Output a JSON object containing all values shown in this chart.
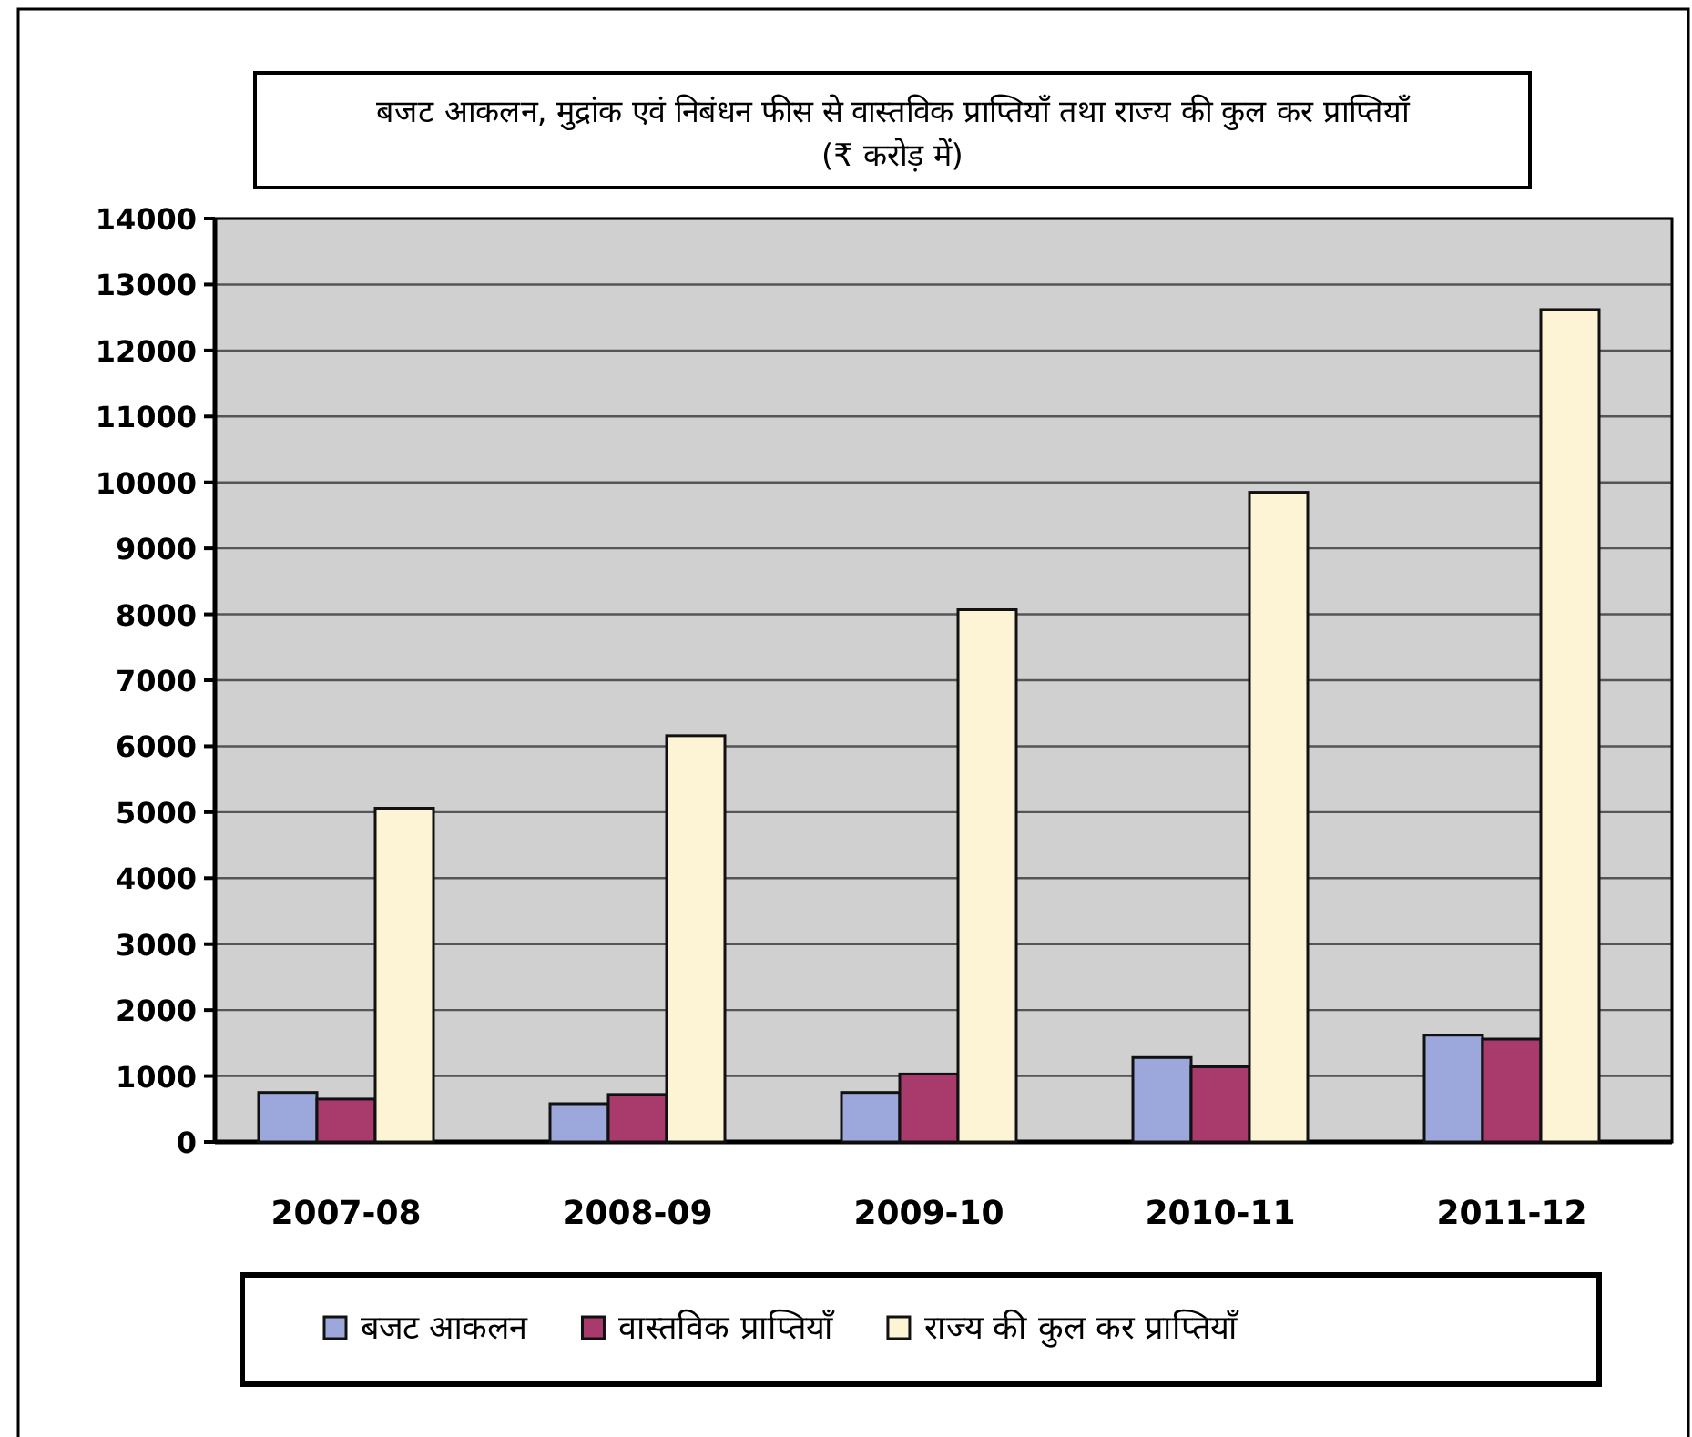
{
  "chart_data": {
    "type": "bar",
    "title": "बजट आकलन, मुद्रांक एवं निबंधन फीस से वास्तविक प्राप्तियाँ तथा राज्य की कुल कर प्राप्तियाँ (₹ करोड़ में)",
    "categories": [
      "2007-08",
      "2008-09",
      "2009-10",
      "2010-11",
      "2011-12"
    ],
    "series": [
      {
        "name": "बजट आकलन",
        "color": "#9ca8dc",
        "values": [
          750,
          580,
          750,
          1280,
          1620
        ]
      },
      {
        "name": "वास्तविक प्राप्तियाँ",
        "color": "#a83a6c",
        "values": [
          650,
          720,
          1030,
          1140,
          1560
        ]
      },
      {
        "name": "राज्य की कुल कर प्राप्तियाँ",
        "color": "#fcf4d4",
        "values": [
          5060,
          6160,
          8070,
          9850,
          12620
        ]
      }
    ],
    "ylim": [
      0,
      14000
    ],
    "yticks": [
      0,
      1000,
      2000,
      3000,
      4000,
      5000,
      6000,
      7000,
      8000,
      9000,
      10000,
      11000,
      12000,
      13000,
      14000
    ],
    "grid": "y",
    "legend": "bottom"
  }
}
